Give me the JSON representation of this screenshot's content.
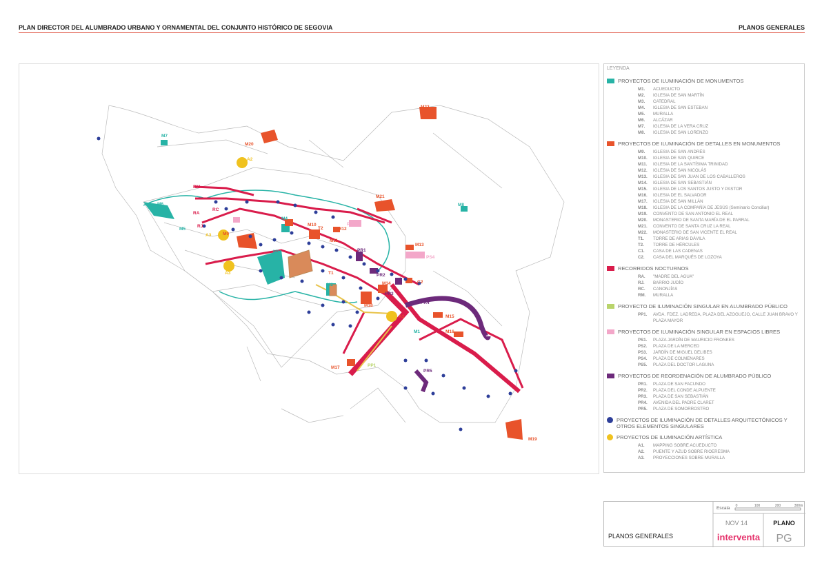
{
  "header": {
    "title": "PLAN DIRECTOR DEL ALUMBRADO URBANO Y ORNAMENTAL DEL CONJUNTO HISTÓRICO DE SEGOVIA",
    "section": "PLANOS GENERALES"
  },
  "legend": {
    "title": "LEYENDA",
    "sections": [
      {
        "heading": "PROYECTOS DE ILUMINACIÓN DE MONUMENTOS",
        "color": "#27b3a6",
        "marker": "square",
        "items": [
          {
            "code": "M1.",
            "label": "ACUEDUCTO"
          },
          {
            "code": "M2.",
            "label": "IGLESIA DE SAN MARTÍN"
          },
          {
            "code": "M3.",
            "label": "CATEDRAL"
          },
          {
            "code": "M4.",
            "label": "IGLESIA DE SAN ESTEBAN"
          },
          {
            "code": "M5.",
            "label": "MURALLA"
          },
          {
            "code": "M6.",
            "label": "ALCÁZAR"
          },
          {
            "code": "M7.",
            "label": "IGLESIA DE LA VERA CRUZ"
          },
          {
            "code": "M8.",
            "label": "IGLESIA DE SAN LORENZO"
          }
        ]
      },
      {
        "heading": "PROYECTOS DE ILUMINACIÓN DE DETALLES EN MONUMENTOS",
        "color": "#e8532b",
        "marker": "square",
        "items": [
          {
            "code": "M9.",
            "label": "IGLESIA DE SAN ANDRÉS"
          },
          {
            "code": "M10.",
            "label": "IGLESIA DE SAN QUIRCE"
          },
          {
            "code": "M11.",
            "label": "IGLESIA DE LA SANTÍSIMA TRINIDAD"
          },
          {
            "code": "M12.",
            "label": "IGLESIA DE SAN NICOLÁS"
          },
          {
            "code": "M13.",
            "label": "IGLESIA DE SAN JUAN DE LOS CABALLEROS"
          },
          {
            "code": "M14.",
            "label": "IGLESIA DE SAN SEBASTIÁN"
          },
          {
            "code": "M15.",
            "label": "IGLESIA DE LOS SANTOS JUSTO Y PASTOR"
          },
          {
            "code": "M16.",
            "label": "IGLESIA DE EL SALVADOR"
          },
          {
            "code": "M17.",
            "label": "IGLESIA DE SAN MILLÁN"
          },
          {
            "code": "M18.",
            "label": "IGLESIA DE LA COMPAÑÍA DE JESÚS (Seminario Conciliar)"
          },
          {
            "code": "M19.",
            "label": "CONVENTO DE SAN ANTONIO EL REAL"
          },
          {
            "code": "M20.",
            "label": "MONASTERIO DE SANTA MARÍA DE EL PARRAL"
          },
          {
            "code": "M21.",
            "label": "CONVENTO DE SANTA CRUZ LA REAL"
          },
          {
            "code": "M22.",
            "label": "MONASTERIO DE SAN VICENTE EL REAL"
          },
          {
            "code": "T1.",
            "label": "TORRE DE ARIAS DÁVILA"
          },
          {
            "code": "T2.",
            "label": "TORRE DE HÉRCULES"
          },
          {
            "code": "C1.",
            "label": "CASA DE LAS CADENAS"
          },
          {
            "code": "C2.",
            "label": "CASA DEL MARQUÉS DE LOZOYA"
          }
        ]
      },
      {
        "heading": "RECORRIDOS NOCTURNOS",
        "color": "#d91c4b",
        "marker": "square",
        "items": [
          {
            "code": "RA.",
            "label": "\"MADRE DEL AGUA\""
          },
          {
            "code": "RJ.",
            "label": "BARRIO JUDÍO"
          },
          {
            "code": "RC.",
            "label": "CANONJÍAS"
          },
          {
            "code": "RM.",
            "label": "MURALLA"
          }
        ]
      },
      {
        "heading": "PROYECTO DE ILUMINACIÓN SINGULAR EN ALUMBRADO PÚBLICO",
        "color": "#b9d46b",
        "marker": "square",
        "items": [
          {
            "code": "PP1.",
            "label": "AVDA. FDEZ. LADREDA, PLAZA DEL AZOGUEJO, CALLE JUAN BRAVO Y PLAZA MAYOR"
          }
        ]
      },
      {
        "heading": "PROYECTOS DE ILUMINACIÓN SINGULAR EN ESPACIOS LIBRES",
        "color": "#f3a7c9",
        "marker": "square",
        "items": [
          {
            "code": "PS1.",
            "label": "PLAZA JARDÍN DE MAURICIO FRONKES"
          },
          {
            "code": "PS2.",
            "label": "PLAZA DE LA MERCED"
          },
          {
            "code": "PS3.",
            "label": "JARDÍN DE MIGUEL DELIBES"
          },
          {
            "code": "PS4.",
            "label": "PLAZA DE COLMENARES"
          },
          {
            "code": "PS5.",
            "label": "PLAZA DEL DOCTOR LAGUNA"
          }
        ]
      },
      {
        "heading": "PROYECTOS DE REORDENACIÓN DE ALUMBRADO PÚBLICO",
        "color": "#6d2a7b",
        "marker": "square",
        "items": [
          {
            "code": "PR1.",
            "label": "PLAZA DE SAN FACUNDO"
          },
          {
            "code": "PR2.",
            "label": "PLAZA DEL CONDE ALPUENTE"
          },
          {
            "code": "PR3.",
            "label": "PLAZA DE SAN SEBASTIÁN"
          },
          {
            "code": "PR4.",
            "label": "AVENIDA DEL PADRE CLARET"
          },
          {
            "code": "PR5.",
            "label": "PLAZA DE SOMORROSTRO"
          }
        ]
      },
      {
        "heading": "PROYECTOS DE ILUMINACIÓN DE DETALLES ARQUITECTÓNICOS Y OTROS ELEMENTOS SINGULARES",
        "color": "#2d3e99",
        "marker": "circle",
        "items": []
      },
      {
        "heading": "PROYECTOS DE ILUMINACIÓN ARTÍSTICA",
        "color": "#f0c21f",
        "marker": "circle",
        "items": [
          {
            "code": "A1.",
            "label": "MAPPING SOBRE ACUEDUCTO"
          },
          {
            "code": "A2.",
            "label": "PUENTE Y AZUD SOBRE RIOERESMA"
          },
          {
            "code": "A3.",
            "label": "PROYECCIONES SOBRE MURALLA"
          }
        ]
      }
    ]
  },
  "map": {
    "labels": [
      "M7",
      "M20",
      "A2",
      "M22",
      "RM",
      "M21",
      "M6",
      "M8",
      "RA",
      "RC",
      "RJ",
      "M5",
      "A3",
      "A3",
      "M4",
      "M10",
      "T2",
      "M12",
      "PS3",
      "M9",
      "M11",
      "M3",
      "PR1",
      "M13",
      "PS4",
      "T1",
      "M2",
      "PR2",
      "M14",
      "PR3",
      "C2",
      "M18",
      "A1",
      "PR4",
      "M15",
      "M16",
      "M1",
      "PP1",
      "M17",
      "PR5",
      "M19"
    ]
  },
  "title_block": {
    "scale_label": "Escala",
    "scale_ticks": [
      "0",
      "100",
      "200",
      "300m"
    ],
    "date": "NOV 14",
    "plano_label": "PLANO",
    "sheet_title": "PLANOS GENERALES",
    "company": "interventa",
    "code": "PG"
  }
}
